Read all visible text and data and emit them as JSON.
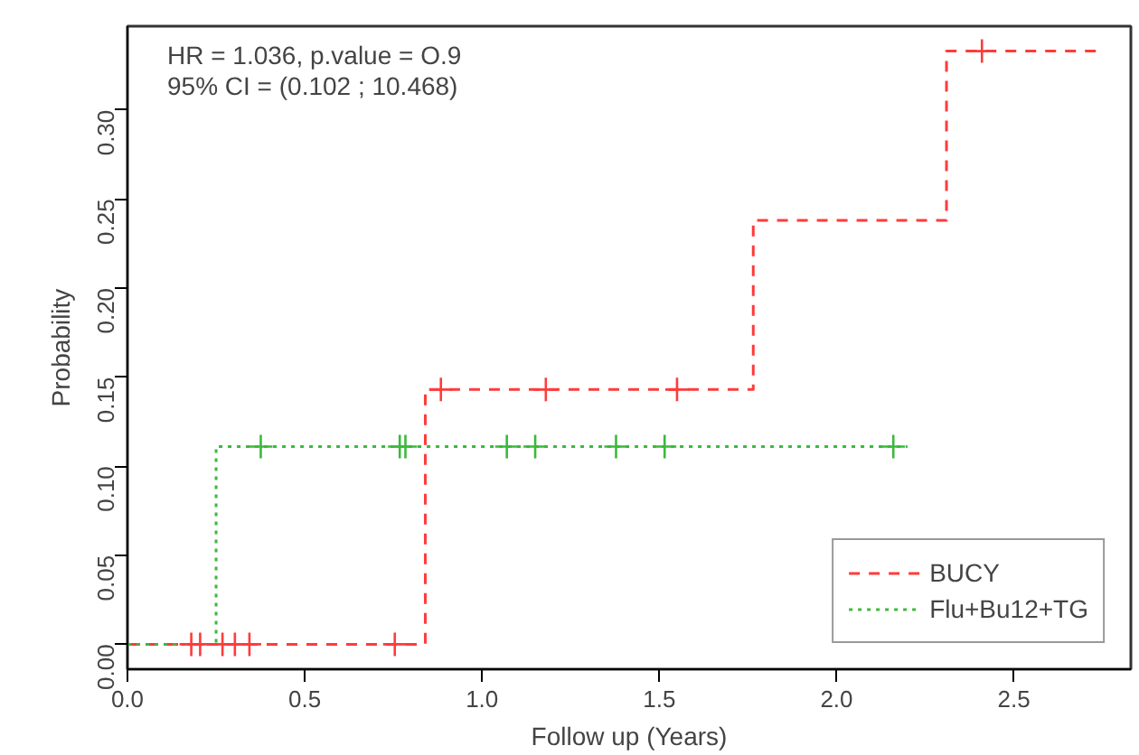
{
  "chart_data": {
    "type": "step",
    "xlabel": "Follow up (Years)",
    "ylabel": "Probability",
    "xlim": [
      0,
      2.83
    ],
    "ylim": [
      -0.014,
      0.347
    ],
    "xticks": [
      {
        "value": 0,
        "label": "0.0"
      },
      {
        "value": 0.5,
        "label": "0.5"
      },
      {
        "value": 1,
        "label": "1.0"
      },
      {
        "value": 1.5,
        "label": "1.5"
      },
      {
        "value": 2,
        "label": "2.0"
      },
      {
        "value": 2.5,
        "label": "2.5"
      }
    ],
    "yticks": [
      {
        "value": 0,
        "label": "0.00"
      },
      {
        "value": 0.05,
        "label": "0.05"
      },
      {
        "value": 0.1,
        "label": "0.10"
      },
      {
        "value": 0.15,
        "label": "0.15"
      },
      {
        "value": 0.2,
        "label": "0.20"
      },
      {
        "value": 0.25,
        "label": "0.25"
      },
      {
        "value": 0.3,
        "label": "0.30"
      }
    ],
    "series": [
      {
        "name": "BUCY",
        "color": "#ff3b3b",
        "line_style": "dashed",
        "x": [
          0,
          0.84,
          1.765,
          2.31,
          2.74
        ],
        "values": [
          0,
          0.143,
          0.238,
          0.333,
          0.333
        ]
      },
      {
        "name": "Flu+Bu12+TG",
        "color": "#3cb93c",
        "line_style": "dotted",
        "x": [
          0,
          0.25,
          2.2
        ],
        "values": [
          0,
          0.111,
          0.111
        ]
      },
      {
        "type": "scatter",
        "marker": "cross",
        "color": "#ff3b3b",
        "x": [
          0.18,
          0.205,
          0.268,
          0.303,
          0.344,
          0.754,
          0.884,
          1.18,
          1.55,
          2.41
        ],
        "values": [
          0,
          0,
          0,
          0,
          0,
          0,
          0.143,
          0.143,
          0.143,
          0.333
        ]
      },
      {
        "type": "scatter",
        "marker": "cross",
        "color": "#3cb93c",
        "x": [
          0.376,
          0.768,
          0.784,
          1.07,
          1.15,
          1.378,
          1.515,
          2.16
        ],
        "values": [
          0.111,
          0.111,
          0.111,
          0.111,
          0.111,
          0.111,
          0.111,
          0.111
        ]
      }
    ],
    "annotations": [
      "HR = 1.036, p.value = O.9",
      "95% CI = (0.102 ; 10.468)"
    ],
    "legend": "bottom right",
    "grid": false
  }
}
